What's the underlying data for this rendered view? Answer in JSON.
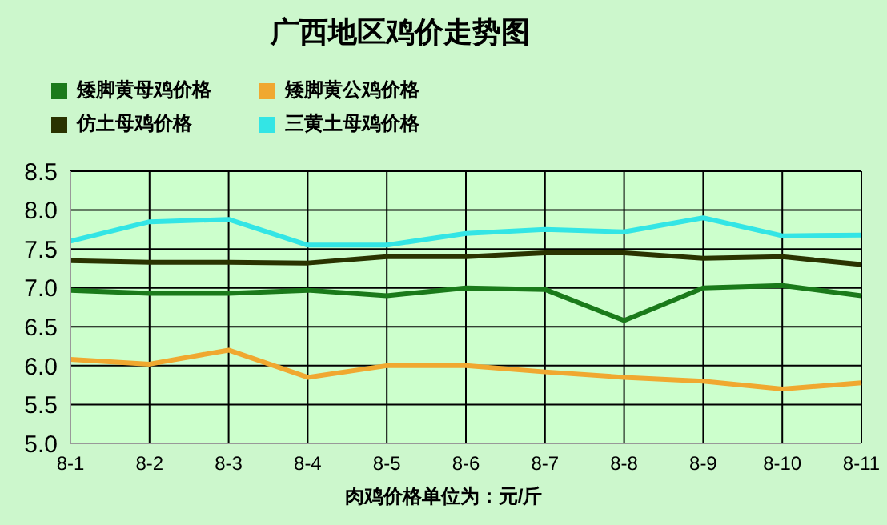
{
  "chart_data": {
    "type": "line",
    "title": "广西地区鸡价走势图",
    "annotations": [
      "肉鸡价格单位为：元/斤"
    ],
    "categories": [
      "8-1",
      "8-2",
      "8-3",
      "8-4",
      "8-5",
      "8-6",
      "8-7",
      "8-8",
      "8-9",
      "8-10",
      "8-11"
    ],
    "series": [
      {
        "name": "矮脚黄母鸡价格",
        "color": "#1a7a1a",
        "values": [
          6.97,
          6.93,
          6.93,
          6.97,
          6.9,
          7.0,
          6.98,
          6.58,
          7.0,
          7.03,
          6.9
        ]
      },
      {
        "name": "矮脚黄公鸡价格",
        "color": "#f0a830",
        "values": [
          6.08,
          6.02,
          6.2,
          5.85,
          6.0,
          6.0,
          5.92,
          5.85,
          5.8,
          5.7,
          5.78
        ]
      },
      {
        "name": "仿土母鸡价格",
        "color": "#2a3300",
        "values": [
          7.35,
          7.33,
          7.33,
          7.32,
          7.4,
          7.4,
          7.45,
          7.45,
          7.38,
          7.4,
          7.3
        ]
      },
      {
        "name": "三黄土母鸡价格",
        "color": "#33e5e5",
        "values": [
          7.6,
          7.85,
          7.88,
          7.55,
          7.55,
          7.7,
          7.75,
          7.72,
          7.9,
          7.67,
          7.68
        ]
      }
    ],
    "ylim": [
      5.0,
      8.5
    ],
    "yticks": [
      {
        "value": 5,
        "label": "5.0"
      },
      5.5,
      {
        "value": 6,
        "label": "6.0"
      },
      6.5,
      {
        "value": 7,
        "label": "7.0"
      },
      7.5,
      {
        "value": 8,
        "label": "8.0"
      },
      8.5
    ],
    "grid": true,
    "legend": "top left",
    "marker": "none",
    "line_style": "solid"
  }
}
